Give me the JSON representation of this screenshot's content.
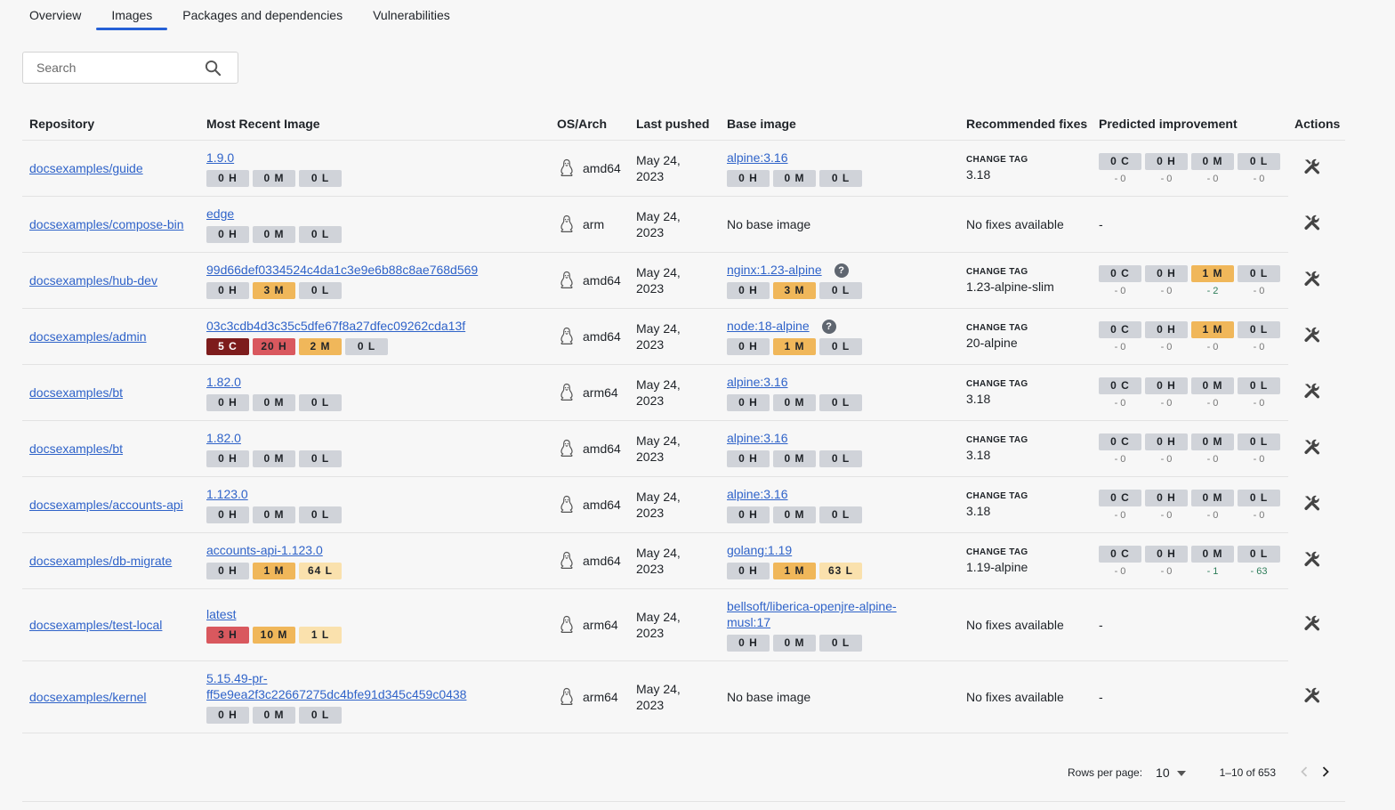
{
  "tabs": [
    {
      "label": "Overview",
      "active": false
    },
    {
      "label": "Images",
      "active": true
    },
    {
      "label": "Packages and dependencies",
      "active": false
    },
    {
      "label": "Vulnerabilities",
      "active": false
    }
  ],
  "search": {
    "placeholder": "Search"
  },
  "columns": {
    "repository": "Repository",
    "image": "Most Recent Image",
    "os_arch": "OS/Arch",
    "last_pushed": "Last pushed",
    "base_image": "Base image",
    "fixes": "Recommended fixes",
    "improvement": "Predicted improvement",
    "actions": "Actions"
  },
  "rows": [
    {
      "repo": "docsexamples/guide",
      "image": "1.9.0",
      "image_badges": [
        "0 H",
        "0 M",
        "0 L"
      ],
      "arch": "amd64",
      "pushed": "May 24, 2023",
      "base": "alpine:3.16",
      "base_badges": [
        "0 H",
        "0 M",
        "0 L"
      ],
      "fix_label": "CHANGE TAG",
      "fix_value": "3.18",
      "improvement": [
        {
          "label": "0 C",
          "delta": "- 0"
        },
        {
          "label": "0 H",
          "delta": "- 0"
        },
        {
          "label": "0 M",
          "delta": "- 0"
        },
        {
          "label": "0 L",
          "delta": "- 0"
        }
      ]
    },
    {
      "repo": "docsexamples/compose-bin",
      "image": "edge",
      "image_badges": [
        "0 H",
        "0 M",
        "0 L"
      ],
      "arch": "arm",
      "pushed": "May 24, 2023",
      "base_text": "No base image",
      "fix_text": "No fixes available",
      "improvement_text": "-"
    },
    {
      "repo": "docsexamples/hub-dev",
      "image": "99d66def0334524c4da1c3e9e6b88c8ae768d569",
      "image_badges": [
        "0 H",
        "3 M",
        "0 L"
      ],
      "arch": "amd64",
      "pushed": "May 24, 2023",
      "base": "nginx:1.23-alpine",
      "base_help": "?",
      "base_badges": [
        "0 H",
        "3 M",
        "0 L"
      ],
      "fix_label": "CHANGE TAG",
      "fix_value": "1.23-alpine-slim",
      "improvement": [
        {
          "label": "0 C",
          "delta": "- 0"
        },
        {
          "label": "0 H",
          "delta": "- 0"
        },
        {
          "label": "1 M",
          "delta": "- 2"
        },
        {
          "label": "0 L",
          "delta": "- 0"
        }
      ]
    },
    {
      "repo": "docsexamples/admin",
      "image": "03c3cdb4d3c35c5dfe67f8a27dfec09262cda13f",
      "image_badges": [
        "5 C",
        "20 H",
        "2 M",
        "0 L"
      ],
      "arch": "amd64",
      "pushed": "May 24, 2023",
      "base": "node:18-alpine",
      "base_help": "?",
      "base_badges": [
        "0 H",
        "1 M",
        "0 L"
      ],
      "fix_label": "CHANGE TAG",
      "fix_value": "20-alpine",
      "improvement": [
        {
          "label": "0 C",
          "delta": "- 0"
        },
        {
          "label": "0 H",
          "delta": "- 0"
        },
        {
          "label": "1 M",
          "delta": "- 0"
        },
        {
          "label": "0 L",
          "delta": "- 0"
        }
      ]
    },
    {
      "repo": "docsexamples/bt",
      "image": "1.82.0",
      "image_badges": [
        "0 H",
        "0 M",
        "0 L"
      ],
      "arch": "arm64",
      "pushed": "May 24, 2023",
      "base": "alpine:3.16",
      "base_badges": [
        "0 H",
        "0 M",
        "0 L"
      ],
      "fix_label": "CHANGE TAG",
      "fix_value": "3.18",
      "improvement": [
        {
          "label": "0 C",
          "delta": "- 0"
        },
        {
          "label": "0 H",
          "delta": "- 0"
        },
        {
          "label": "0 M",
          "delta": "- 0"
        },
        {
          "label": "0 L",
          "delta": "- 0"
        }
      ]
    },
    {
      "repo": "docsexamples/bt",
      "image": "1.82.0",
      "image_badges": [
        "0 H",
        "0 M",
        "0 L"
      ],
      "arch": "amd64",
      "pushed": "May 24, 2023",
      "base": "alpine:3.16",
      "base_badges": [
        "0 H",
        "0 M",
        "0 L"
      ],
      "fix_label": "CHANGE TAG",
      "fix_value": "3.18",
      "improvement": [
        {
          "label": "0 C",
          "delta": "- 0"
        },
        {
          "label": "0 H",
          "delta": "- 0"
        },
        {
          "label": "0 M",
          "delta": "- 0"
        },
        {
          "label": "0 L",
          "delta": "- 0"
        }
      ]
    },
    {
      "repo": "docsexamples/accounts-api",
      "image": "1.123.0",
      "image_badges": [
        "0 H",
        "0 M",
        "0 L"
      ],
      "arch": "amd64",
      "pushed": "May 24, 2023",
      "base": "alpine:3.16",
      "base_badges": [
        "0 H",
        "0 M",
        "0 L"
      ],
      "fix_label": "CHANGE TAG",
      "fix_value": "3.18",
      "improvement": [
        {
          "label": "0 C",
          "delta": "- 0"
        },
        {
          "label": "0 H",
          "delta": "- 0"
        },
        {
          "label": "0 M",
          "delta": "- 0"
        },
        {
          "label": "0 L",
          "delta": "- 0"
        }
      ]
    },
    {
      "repo": "docsexamples/db-migrate",
      "image": "accounts-api-1.123.0",
      "image_badges": [
        "0 H",
        "1 M",
        "64 L"
      ],
      "arch": "amd64",
      "pushed": "May 24, 2023",
      "base": "golang:1.19",
      "base_badges": [
        "0 H",
        "1 M",
        "63 L"
      ],
      "fix_label": "CHANGE TAG",
      "fix_value": "1.19-alpine",
      "improvement": [
        {
          "label": "0 C",
          "delta": "- 0"
        },
        {
          "label": "0 H",
          "delta": "- 0"
        },
        {
          "label": "0 M",
          "delta": "- 1"
        },
        {
          "label": "0 L",
          "delta": "- 63"
        }
      ]
    },
    {
      "repo": "docsexamples/test-local",
      "image": "latest",
      "image_badges": [
        "3 H",
        "10 M",
        "1 L"
      ],
      "arch": "arm64",
      "pushed": "May 24, 2023",
      "base": "bellsoft/liberica-openjre-alpine-musl:17",
      "base_badges": [
        "0 H",
        "0 M",
        "0 L"
      ],
      "fix_text": "No fixes available",
      "improvement_text": "-"
    },
    {
      "repo": "docsexamples/kernel",
      "image": "5.15.49-pr-ff5e9ea2f3c22667275dc4bfe91d345c459c0438",
      "image_badges": [
        "0 H",
        "0 M",
        "0 L"
      ],
      "arch": "arm64",
      "pushed": "May 24, 2023",
      "base_text": "No base image",
      "fix_text": "No fixes available",
      "improvement_text": "-"
    }
  ],
  "pagination": {
    "rows_per_page_label": "Rows per page:",
    "rows_per_page": "10",
    "range": "1–10 of 653"
  },
  "colors": {
    "accent": "#2560d6",
    "link": "#2f63c9",
    "critical": "#7d1c1c",
    "high": "#d9585e",
    "medium": "#f0b75a",
    "low": "#fae1ad",
    "none": "#d0d3d9"
  }
}
